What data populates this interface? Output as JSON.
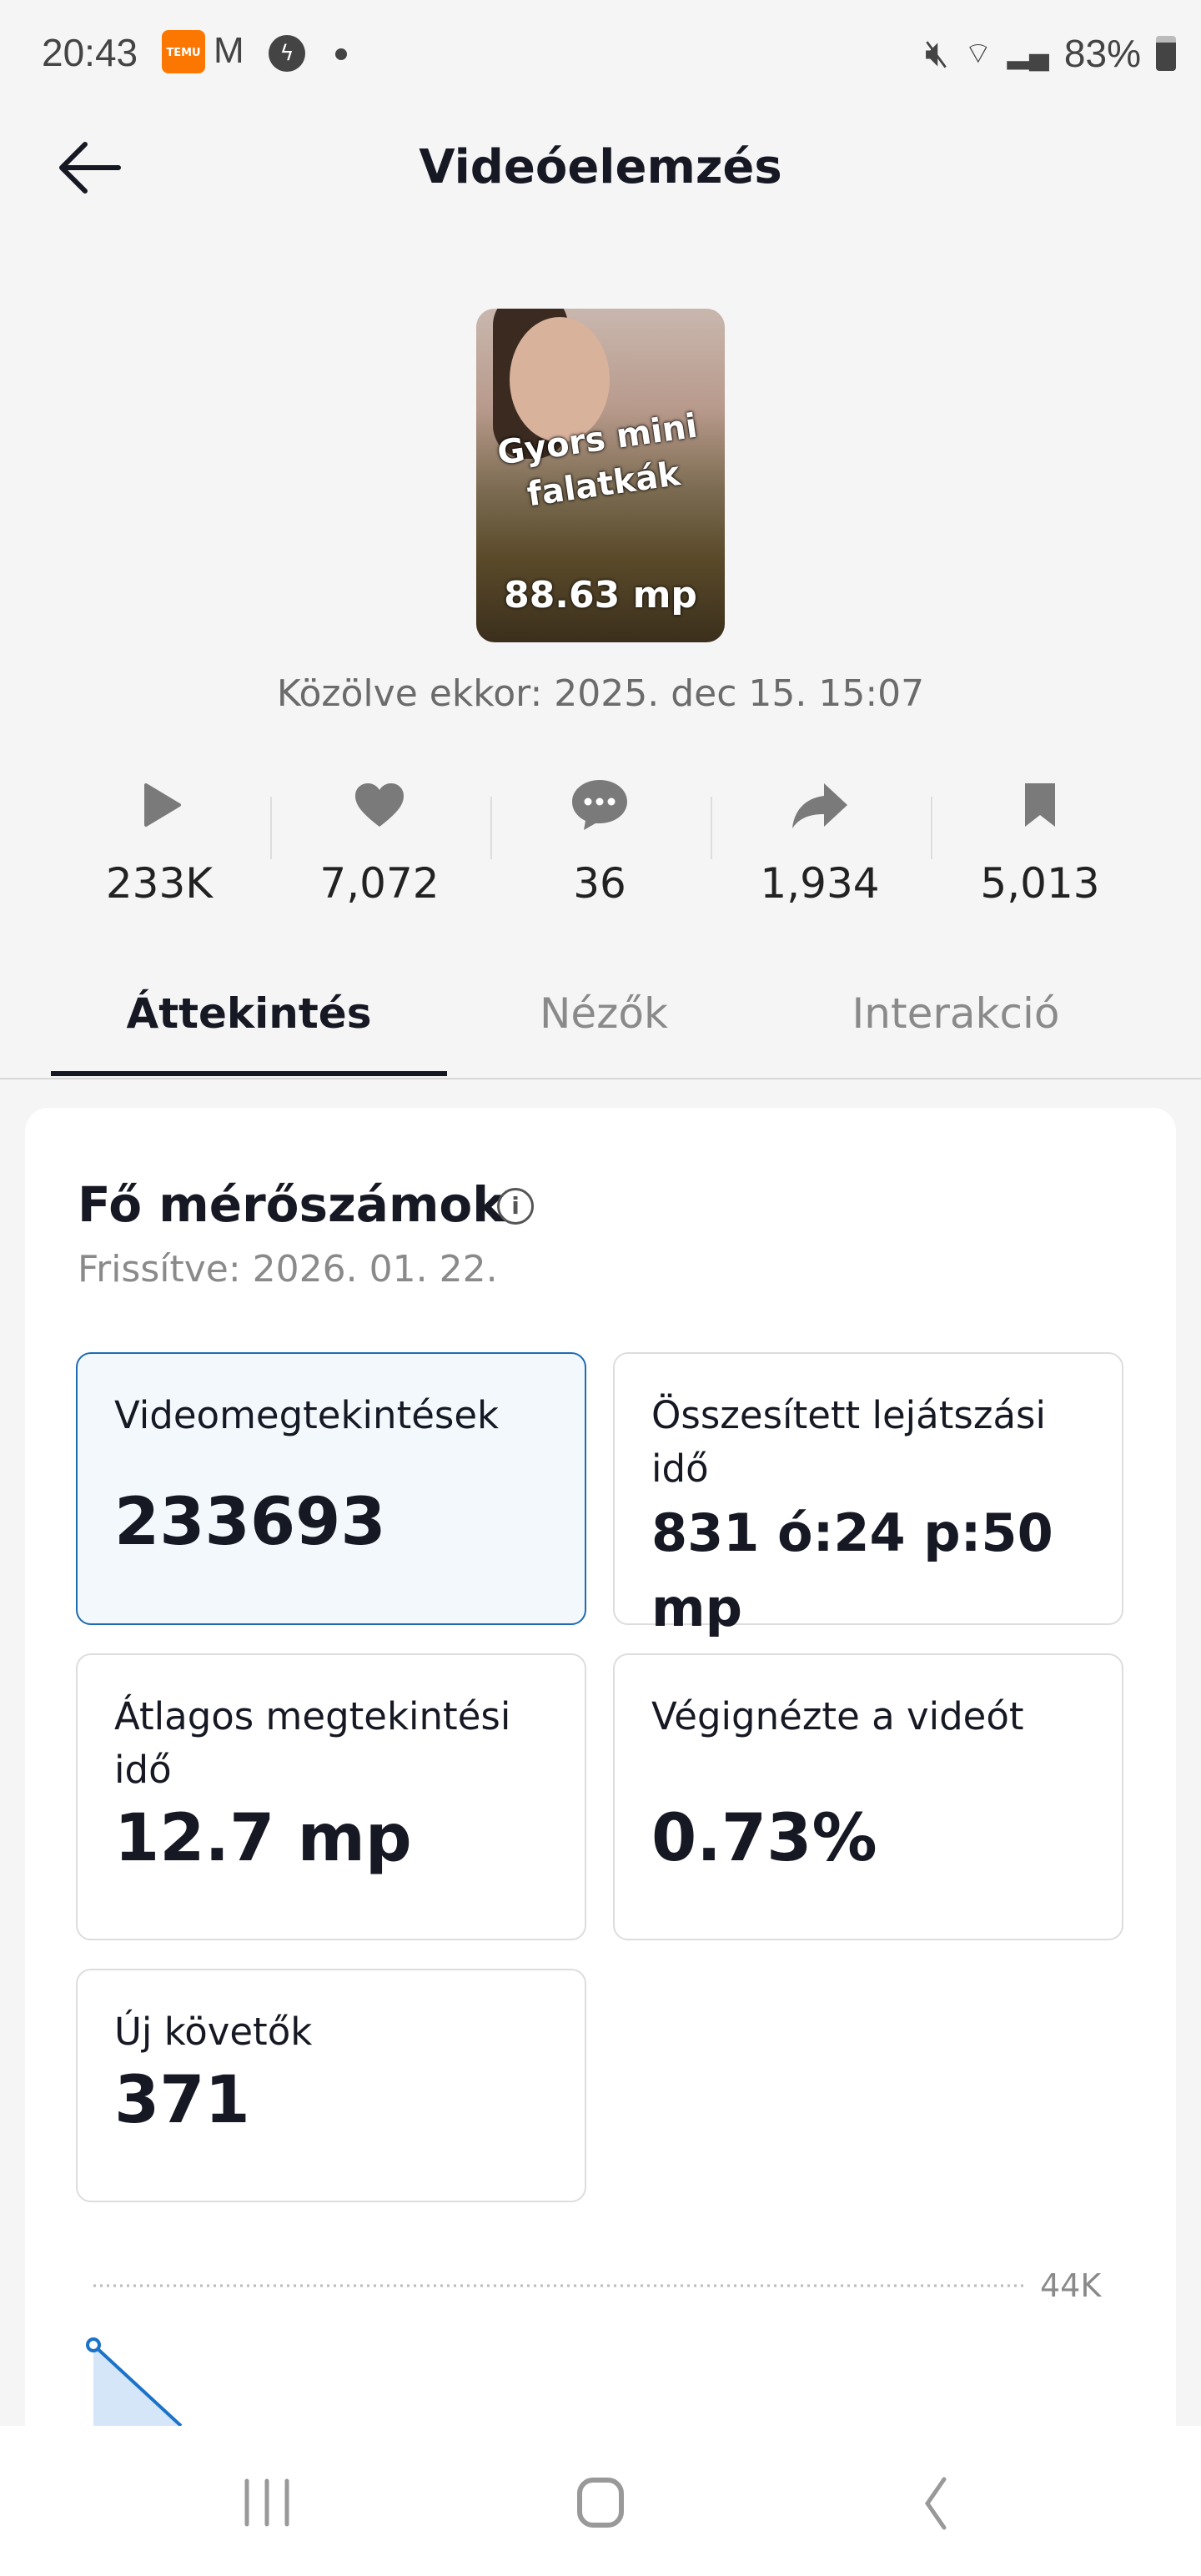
{
  "status_bar": {
    "time": "20:43",
    "battery": "83%",
    "notification_icons": [
      "temu-icon",
      "gmail-icon",
      "messenger-icon"
    ],
    "temu_label": "TEMU",
    "gmail_label": "M"
  },
  "header": {
    "title": "Videóelemzés"
  },
  "video": {
    "caption": "Gyors mini falatkák",
    "duration": "88.63 mp",
    "published": "Közölve ekkor: 2025. dec 15. 15:07"
  },
  "stats": [
    {
      "icon": "play-icon",
      "value": "233K"
    },
    {
      "icon": "heart-icon",
      "value": "7,072"
    },
    {
      "icon": "comment-icon",
      "value": "36"
    },
    {
      "icon": "share-icon",
      "value": "1,934"
    },
    {
      "icon": "bookmark-icon",
      "value": "5,013"
    }
  ],
  "tabs": [
    {
      "label": "Áttekintés",
      "active": true
    },
    {
      "label": "Nézők"
    },
    {
      "label": "Interakció"
    }
  ],
  "metrics_section": {
    "title": "Fő mérőszámok",
    "updated": "Frissítve: 2026. 01. 22.",
    "metrics": [
      {
        "label": "Videomegtekintések",
        "value": "233693",
        "selected": true
      },
      {
        "label": "Összesített lejátszási idő",
        "value": "831 ó:24 p:50 mp"
      },
      {
        "label": "Átlagos megtekintési idő",
        "value": "12.7 mp"
      },
      {
        "label": "Végignézte a videót",
        "value": "0.73%"
      },
      {
        "label": "Új követők",
        "value": "371"
      }
    ]
  },
  "chart": {
    "type": "area",
    "y_tick": "44K",
    "line_color": "#1a73c8",
    "fill_color": "#d4e6f8"
  },
  "colors": {
    "accent": "#1e6bb0",
    "temu": "#fb7701"
  }
}
